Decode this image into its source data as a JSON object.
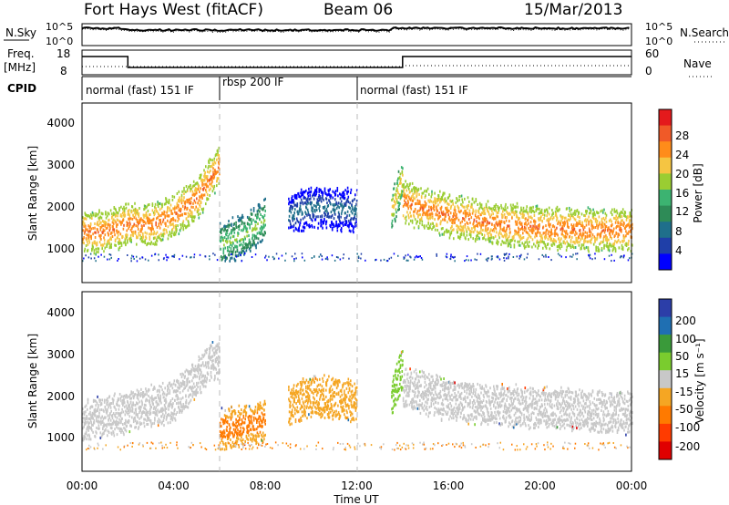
{
  "header": {
    "station": "Fort Hays West (fitACF)",
    "beam": "Beam 06",
    "date": "15/Mar/2013"
  },
  "noise_panel": {
    "left_label": "N.Sky",
    "right_label": "N.Search",
    "left_ticks": [
      "10^5",
      "10^0"
    ],
    "right_ticks": [
      "10^5",
      "10^0"
    ]
  },
  "freq_panel": {
    "left_label_1": "Freq.",
    "left_label_2": "[MHz]",
    "right_label": "Nave",
    "left_ticks": [
      "18",
      "8"
    ],
    "right_ticks": [
      "60",
      "0"
    ]
  },
  "cpid_panel": {
    "label": "CPID",
    "segments": [
      {
        "name": "normal (fast) 151 IF",
        "start": 0,
        "end": 6
      },
      {
        "name": "rbsp 200 IF",
        "start": 6,
        "end": 12
      },
      {
        "name": "normal (fast) 151 IF",
        "start": 12,
        "end": 24
      }
    ]
  },
  "power_panel": {
    "ylabel": "Slant Range [km]",
    "yticks": [
      "4000",
      "3000",
      "2000",
      "1000"
    ],
    "colorbar_label": "Power [dB]",
    "colorbar_ticks": [
      "28",
      "24",
      "20",
      "16",
      "12",
      "8",
      "4"
    ]
  },
  "velocity_panel": {
    "ylabel": "Slant Range [km]",
    "yticks": [
      "4000",
      "3000",
      "2000",
      "1000"
    ],
    "colorbar_label": "Velocity [m s⁻¹]",
    "colorbar_ticks": [
      "200",
      "100",
      "50",
      "15",
      "-15",
      "-50",
      "-100",
      "-200"
    ]
  },
  "x_axis": {
    "label": "Time UT",
    "ticks": [
      "00:00",
      "04:00",
      "08:00",
      "12:00",
      "16:00",
      "20:00",
      "00:00"
    ]
  },
  "colors": {
    "power_scale": [
      "#e41a1c",
      "#f05a28",
      "#ff8c1a",
      "#f5c542",
      "#9acd32",
      "#3cb371",
      "#2e8b57",
      "#1f6f8b",
      "#1f3fa8",
      "#0000ff"
    ],
    "velocity_scale": [
      "#2c3ea8",
      "#1f6fb2",
      "#3a9a3a",
      "#7acc2e",
      "#c8c8c8",
      "#f5a623",
      "#ff7a00",
      "#ff3b00",
      "#e00000"
    ]
  },
  "chart_data": {
    "type": "heatmap",
    "x_range_hours": [
      0,
      24
    ],
    "y_range_km": [
      500,
      4500
    ],
    "power_bands": [
      {
        "x": [
          0.0,
          1.0,
          2.0,
          3.0,
          4.0,
          5.0,
          6.0
        ],
        "y": [
          1300,
          1300,
          1500,
          1450,
          1700,
          2100,
          2900
        ],
        "level": 24
      },
      {
        "x": [
          6.0,
          7.0,
          8.0
        ],
        "y": [
          1000,
          1200,
          1600
        ],
        "level": 16
      },
      {
        "x": [
          9.0,
          10.0,
          11.0,
          12.0
        ],
        "y": [
          1700,
          1900,
          1850,
          1800
        ],
        "level": 8
      },
      {
        "x": [
          13.5,
          14.0
        ],
        "y": [
          1800,
          2600
        ],
        "level": 20
      },
      {
        "x": [
          14.0,
          16.0,
          18.0,
          20.0,
          22.0,
          24.0
        ],
        "y": [
          2000,
          1700,
          1500,
          1400,
          1350,
          1350
        ],
        "level": 24
      }
    ],
    "velocity_bands": [
      {
        "x": [
          0.0,
          2.0,
          4.0,
          6.0
        ],
        "y": [
          1300,
          1500,
          1800,
          2900
        ],
        "velocity": 0
      },
      {
        "x": [
          6.0,
          7.0,
          8.0
        ],
        "y": [
          1100,
          1200,
          1300
        ],
        "velocity": -50
      },
      {
        "x": [
          9.0,
          10.0,
          11.0,
          12.0
        ],
        "y": [
          1700,
          1900,
          1850,
          1800
        ],
        "velocity": -15
      },
      {
        "x": [
          13.5,
          14.0
        ],
        "y": [
          1900,
          2600
        ],
        "velocity": 50
      },
      {
        "x": [
          14.0,
          16.0,
          20.0,
          24.0
        ],
        "y": [
          2100,
          1800,
          1600,
          1500
        ],
        "velocity": 0
      }
    ]
  }
}
